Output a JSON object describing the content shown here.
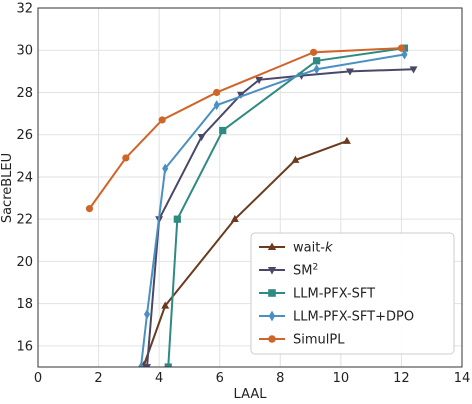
{
  "chart_data": {
    "type": "line",
    "xlabel": "LAAL",
    "ylabel": "SacreBLEU",
    "xlim": [
      0,
      14
    ],
    "ylim": [
      15,
      32
    ],
    "xticks": [
      0,
      2,
      4,
      6,
      8,
      10,
      12,
      14
    ],
    "yticks": [
      16,
      18,
      20,
      22,
      24,
      26,
      28,
      30,
      32
    ],
    "grid": true,
    "legend_position": "bottom-right",
    "series": [
      {
        "name": "wait-k",
        "name_plain": "wait-",
        "name_italic": "k",
        "color": "#6b3a1f",
        "marker": "triangle-up",
        "x": [
          3.5,
          4.2,
          6.5,
          8.5,
          10.2
        ],
        "y": [
          15.1,
          17.9,
          22.0,
          24.8,
          25.7
        ]
      },
      {
        "name": "SM²",
        "name_plain": "SM",
        "name_sup": "2",
        "color": "#4a4868",
        "marker": "triangle-down",
        "x": [
          3.6,
          4.0,
          5.4,
          6.7,
          7.3,
          8.7,
          10.3,
          12.4
        ],
        "y": [
          15.0,
          22.0,
          25.9,
          27.9,
          28.6,
          28.8,
          29.0,
          29.1
        ]
      },
      {
        "name": "LLM-PFX-SFT",
        "color": "#2f8a82",
        "marker": "square",
        "x": [
          4.3,
          4.6,
          6.1,
          9.2,
          12.1
        ],
        "y": [
          15.0,
          22.0,
          26.2,
          29.5,
          30.1
        ]
      },
      {
        "name": "LLM-PFX-SFT+DPO",
        "color": "#4a90c2",
        "marker": "diamond",
        "x": [
          3.4,
          3.6,
          4.2,
          5.9,
          9.2,
          12.1
        ],
        "y": [
          15.0,
          17.5,
          24.4,
          27.4,
          29.1,
          29.8
        ]
      },
      {
        "name": "SimulPL",
        "color": "#d0652a",
        "marker": "circle",
        "x": [
          1.7,
          2.9,
          4.1,
          5.9,
          9.1,
          12.0
        ],
        "y": [
          22.5,
          24.9,
          26.7,
          28.0,
          29.9,
          30.1
        ]
      }
    ]
  }
}
